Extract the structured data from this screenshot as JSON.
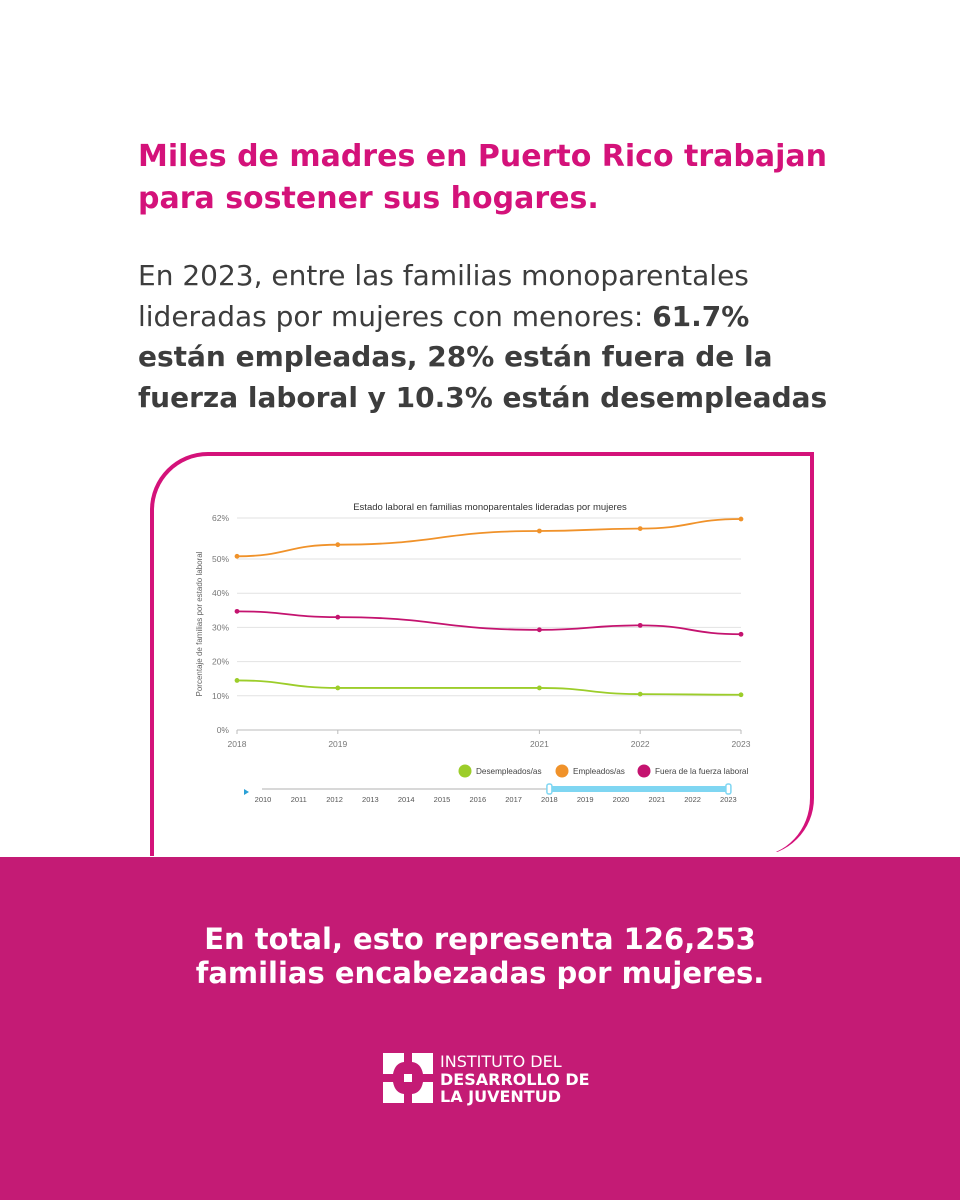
{
  "headline": {
    "line1": "Miles de madres en Puerto Rico trabajan",
    "line2": "para sostener sus hogares."
  },
  "summary": {
    "intro": "En 2023, entre las familias monoparentales lideradas por mujeres con menores: ",
    "highlight": "61.7% están empleadas, 28% están fuera de la fuerza laboral y 10.3% están desempleadas"
  },
  "chart_data": {
    "type": "line",
    "title": "Estado laboral en familias monoparentales lideradas por mujeres",
    "xlabel": "",
    "ylabel": "Porcentaje de familias por estado laboral",
    "x": [
      2018,
      2019,
      2021,
      2022,
      2023
    ],
    "x_tick_labels": [
      "2018",
      "2019",
      "2021",
      "2022",
      "2023"
    ],
    "xlim": [
      2018,
      2023
    ],
    "ylim": [
      0,
      62
    ],
    "y_ticks": [
      0,
      10,
      20,
      30,
      40,
      50,
      62
    ],
    "y_tick_labels": [
      "0%",
      "10%",
      "20%",
      "30%",
      "40%",
      "50%",
      "62%"
    ],
    "grid": true,
    "legend_position": "bottom-right",
    "series": [
      {
        "name": "Desempleados/as",
        "color": "#9ccd2a",
        "values": [
          14.5,
          12.3,
          12.3,
          10.5,
          10.3
        ]
      },
      {
        "name": "Empleados/as",
        "color": "#f0922a",
        "values": [
          50.8,
          54.2,
          58.2,
          58.9,
          61.7
        ]
      },
      {
        "name": "Fuera de la fuerza laboral",
        "color": "#c4136f",
        "values": [
          34.7,
          33.0,
          29.3,
          30.6,
          28.0
        ]
      }
    ],
    "range_slider": {
      "years": [
        "2010",
        "2011",
        "2012",
        "2013",
        "2014",
        "2015",
        "2016",
        "2017",
        "2018",
        "2019",
        "2020",
        "2021",
        "2022",
        "2023"
      ],
      "selected_start": "2018",
      "selected_end": "2023",
      "handle_color": "#7fd6f2"
    }
  },
  "total": {
    "line1": "En total, esto representa 126,253",
    "line2": "familias encabezadas por mujeres."
  },
  "logo": {
    "line1": "INSTITUTO DEL",
    "line2": "DESARROLLO DE",
    "line3": "LA JUVENTUD"
  },
  "colors": {
    "brand": "#d4127a",
    "band": "#c41b75",
    "body_text": "#3d3d3d"
  }
}
